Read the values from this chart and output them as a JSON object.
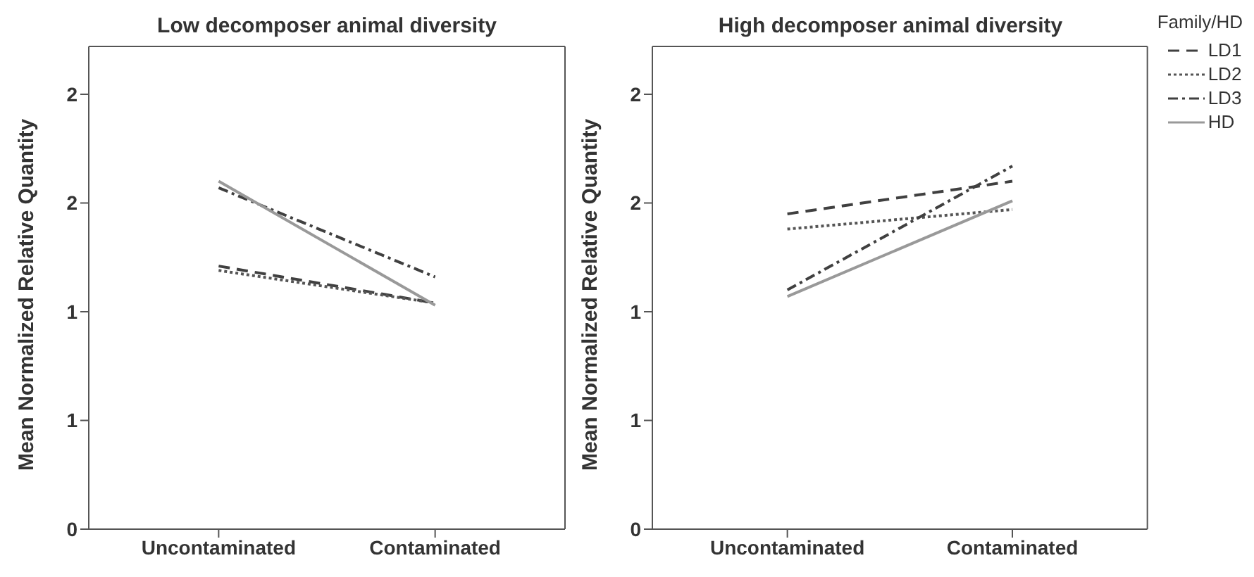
{
  "chart_data": [
    {
      "type": "line",
      "title": "Low decomposer animal diversity",
      "ylabel": "Mean Normalized Relative Quantity",
      "categories": [
        "Uncontaminated",
        "Contaminated"
      ],
      "series": [
        {
          "color": "#404040",
          "line_style": "dashed",
          "values": [
            1.21,
            1.04
          ]
        },
        {
          "color": "#555555",
          "line_style": "dotted",
          "values": [
            1.19,
            1.04
          ]
        },
        {
          "color": "#404040",
          "line_style": "dashdot",
          "values": [
            1.57,
            1.16
          ]
        },
        {
          "color": "#999999",
          "line_style": "solid",
          "values": [
            1.6,
            1.03
          ]
        }
      ],
      "ylim": [
        0,
        2.22
      ],
      "yticks": [
        0,
        {
          "value": 0.5,
          "label": "1"
        },
        {
          "value": 1,
          "label": "1"
        },
        {
          "value": 1.5,
          "label": "2"
        },
        {
          "value": 2,
          "label": "2"
        }
      ],
      "grid": false,
      "legend": false
    },
    {
      "type": "line",
      "title": "High decomposer animal diversity",
      "ylabel": "Mean Normalized Relative Quantity",
      "legend_title": "Family/HD",
      "categories": [
        "Uncontaminated",
        "Contaminated"
      ],
      "series": [
        {
          "name": "LD1",
          "color": "#404040",
          "line_style": "dashed",
          "values": [
            1.45,
            1.6
          ]
        },
        {
          "name": "LD2",
          "color": "#555555",
          "line_style": "dotted",
          "values": [
            1.38,
            1.47
          ]
        },
        {
          "name": "LD3",
          "color": "#404040",
          "line_style": "dashdot",
          "values": [
            1.1,
            1.67
          ]
        },
        {
          "name": "HD",
          "color": "#999999",
          "line_style": "solid",
          "values": [
            1.07,
            1.51
          ]
        }
      ],
      "ylim": [
        0,
        2.22
      ],
      "yticks": [
        0,
        {
          "value": 0.5,
          "label": "1"
        },
        {
          "value": 1,
          "label": "1"
        },
        {
          "value": 1.5,
          "label": "2"
        },
        {
          "value": 2,
          "label": "2"
        }
      ],
      "grid": false,
      "legend": "right"
    }
  ]
}
